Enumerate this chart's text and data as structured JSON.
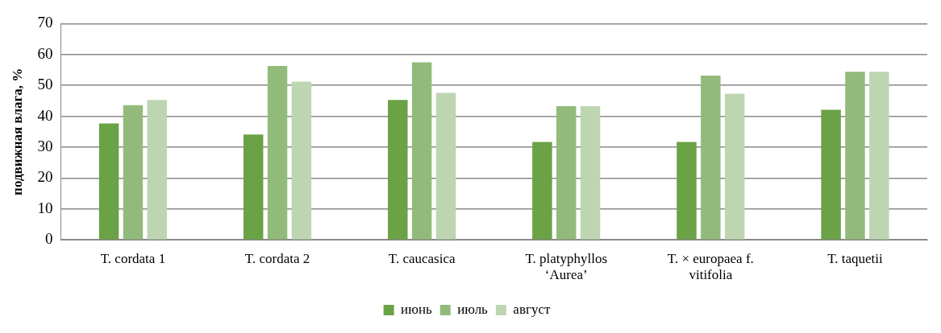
{
  "chart_data": {
    "type": "bar",
    "ylabel": "подвижная влага, %",
    "categories": [
      "T. cordata 1",
      "T. cordata 2",
      "T. caucasica",
      "T. platyphyllos ‘Aurea’",
      "T. × europaea f. vitifolia",
      "T. taquetii"
    ],
    "series": [
      {
        "name": "июнь",
        "color": "#6aa245",
        "values": [
          37.7,
          34.1,
          45.3,
          31.7,
          31.7,
          42.1
        ]
      },
      {
        "name": "июль",
        "color": "#92bb7b",
        "values": [
          43.6,
          56.3,
          57.5,
          43.3,
          53.2,
          54.4
        ]
      },
      {
        "name": "август",
        "color": "#bed5b2",
        "values": [
          45.3,
          51.2,
          47.6,
          43.3,
          47.3,
          54.4
        ]
      }
    ],
    "ylim": [
      0,
      70
    ],
    "yticks": [
      0,
      10,
      20,
      30,
      40,
      50,
      60,
      70
    ],
    "grid": "y",
    "legend": "bottom"
  }
}
